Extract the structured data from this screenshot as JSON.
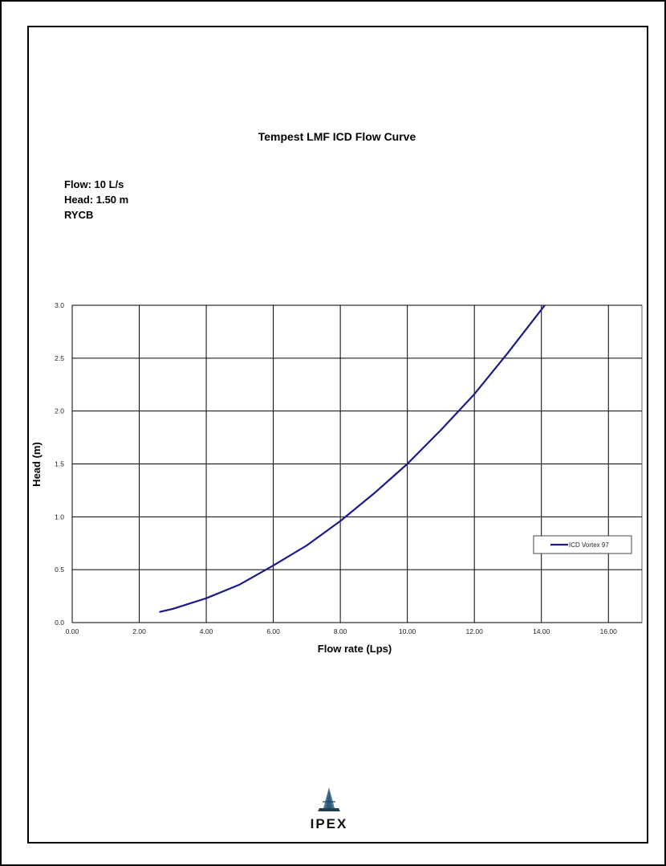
{
  "page": {
    "title": "Tempest LMF ICD Flow Curve",
    "info": [
      "Flow: 10 L/s",
      "Head: 1.50 m",
      "RYCB"
    ],
    "logo_text": "IPEX"
  },
  "colors": {
    "series": "#1a1a8c",
    "grid": "#000000",
    "axis_text": "#222222"
  },
  "chart_data": {
    "type": "line",
    "title": "Tempest LMF ICD Flow Curve",
    "xlabel": "Flow rate (Lps)",
    "ylabel": "Head (m)",
    "xlim": [
      0,
      17
    ],
    "ylim": [
      0,
      3.0
    ],
    "x_ticks": [
      0,
      2,
      4,
      6,
      8,
      10,
      12,
      14,
      16
    ],
    "x_tick_labels": [
      "0.00",
      "2.00",
      "4.00",
      "6.00",
      "8.00",
      "10.00",
      "12.00",
      "14.00",
      "16.00"
    ],
    "y_ticks": [
      0,
      0.5,
      1.0,
      1.5,
      2.0,
      2.5,
      3.0
    ],
    "y_tick_labels": [
      "0.0",
      "0.5",
      "1.0",
      "1.5",
      "2.0",
      "2.5",
      "3.0"
    ],
    "grid": true,
    "legend_position": "right",
    "series": [
      {
        "name": "ICD Vortex 97",
        "x": [
          2.6,
          3.0,
          3.5,
          4.0,
          5.0,
          6.0,
          7.0,
          8.0,
          9.0,
          10.0,
          11.0,
          12.0,
          13.0,
          14.1
        ],
        "y": [
          0.1,
          0.13,
          0.18,
          0.23,
          0.36,
          0.54,
          0.73,
          0.96,
          1.22,
          1.5,
          1.82,
          2.16,
          2.55,
          3.0
        ]
      }
    ]
  }
}
